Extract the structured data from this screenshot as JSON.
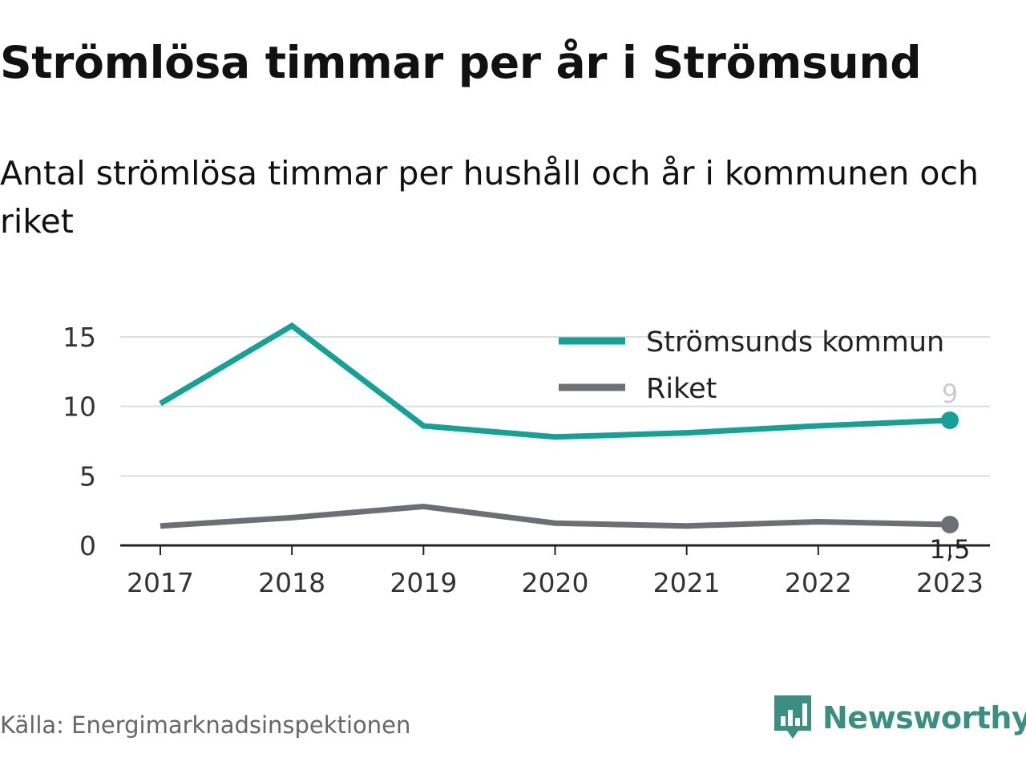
{
  "header": {
    "title": "Strömlösa timmar per år i Strömsund",
    "subtitle": "Antal strömlösa timmar per hushåll och år i kommunen och riket"
  },
  "footer": {
    "source": "Källa: Energimarknadsinspektionen",
    "brand": "Newsworthy",
    "brand_icon": "newsworthy-logo-icon"
  },
  "colors": {
    "series_kommun": "#16a196",
    "series_riket": "#6e6e76",
    "grid": "#dddddd",
    "axis": "#222222",
    "brand": "#3a8f80"
  },
  "chart_data": {
    "type": "line",
    "title": "Strömlösa timmar per år i Strömsund",
    "subtitle": "Antal strömlösa timmar per hushåll och år i kommunen och riket",
    "x": [
      "2017",
      "2018",
      "2019",
      "2020",
      "2021",
      "2022",
      "2023"
    ],
    "ylim": [
      0,
      15
    ],
    "yticks": [
      "0",
      "5",
      "10",
      "15"
    ],
    "grid": true,
    "legend_position": "top-right",
    "series": [
      {
        "name": "Strömsunds kommun",
        "color": "#16a196",
        "values": [
          10.2,
          15.8,
          8.6,
          7.8,
          8.1,
          8.6,
          9.0
        ],
        "end_label": "9"
      },
      {
        "name": "Riket",
        "color": "#6e6e76",
        "values": [
          1.4,
          2.0,
          2.8,
          1.6,
          1.4,
          1.7,
          1.5
        ],
        "end_label": "1,5"
      }
    ]
  }
}
